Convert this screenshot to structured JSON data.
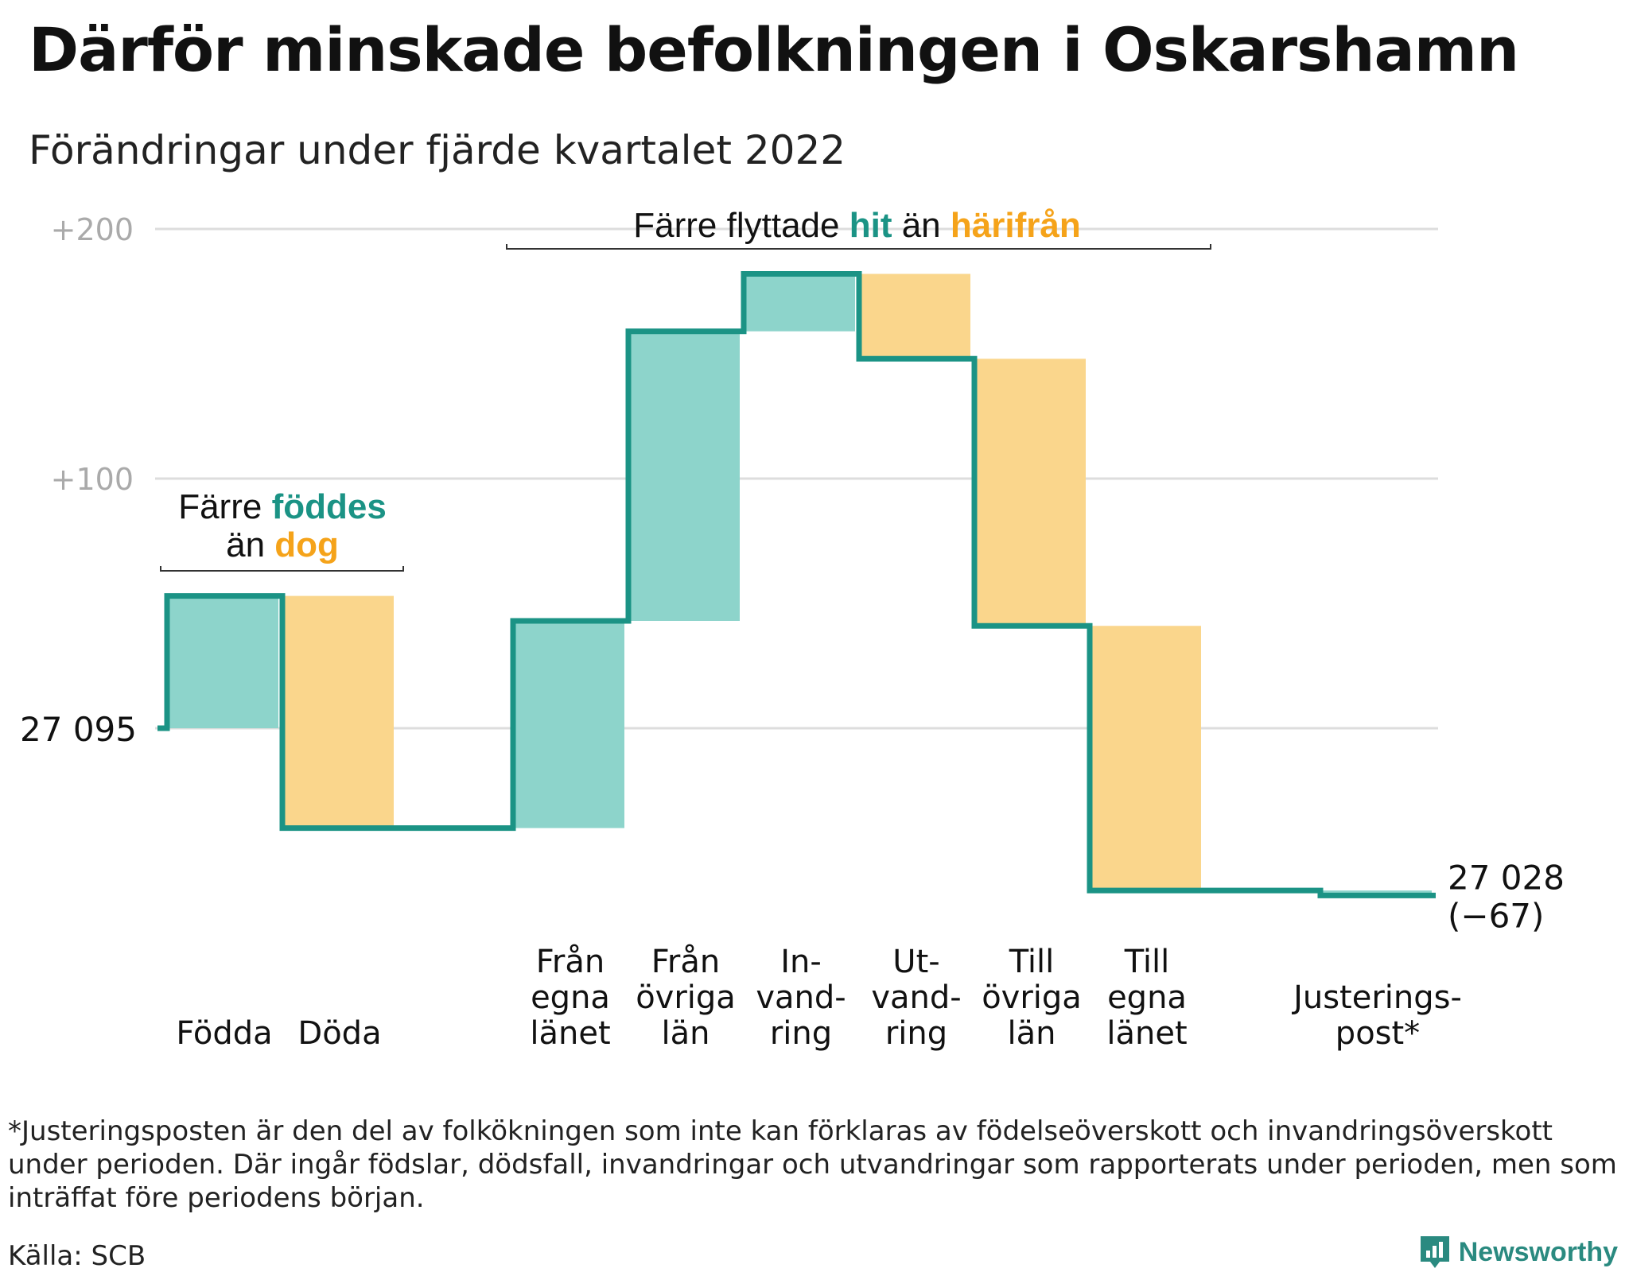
{
  "title": "Därför minskade befolkningen i Oskarshamn",
  "subtitle": "Förändringar under fjärde kvartalet 2022",
  "colors": {
    "inflow": "#8dd4cb",
    "outflow": "#fad68c",
    "line": "#1b9385",
    "inflow_text": "#1b9385",
    "outflow_text": "#f5a31a",
    "grid": "#dddddd",
    "tick": "#aaaaaa"
  },
  "annotations": {
    "births": {
      "pre": "Färre ",
      "hi1": "föddes",
      "line2_pre": "än ",
      "hi2": "dog"
    },
    "migration": {
      "pre": "Färre flyttade ",
      "hi1": "hit",
      "mid": " än ",
      "hi2": "härifrån"
    }
  },
  "chart_data": {
    "type": "waterfall",
    "start_value": 27095,
    "start_label": "27 095",
    "end_label": "27 028",
    "end_change": "(−67)",
    "ylim": [
      -80,
      200
    ],
    "yticks": [
      {
        "value": 200,
        "label": "+200"
      },
      {
        "value": 100,
        "label": "+100"
      },
      {
        "value": 0,
        "label": ""
      }
    ],
    "grid": true,
    "steps": [
      {
        "label": [
          "Födda"
        ],
        "change": 53,
        "kind": "inflow"
      },
      {
        "label": [
          "Döda"
        ],
        "change": -93,
        "kind": "outflow"
      },
      {
        "label": [
          ""
        ],
        "change": 0,
        "kind": "gap"
      },
      {
        "label": [
          "Från",
          "egna",
          "länet"
        ],
        "change": 83,
        "kind": "inflow"
      },
      {
        "label": [
          "Från",
          "övriga",
          "län"
        ],
        "change": 116,
        "kind": "inflow"
      },
      {
        "label": [
          "In-",
          "vand-",
          "ring"
        ],
        "change": 23,
        "kind": "inflow"
      },
      {
        "label": [
          "Ut-",
          "vand-",
          "ring"
        ],
        "change": -34,
        "kind": "outflow"
      },
      {
        "label": [
          "Till",
          "övriga",
          "län"
        ],
        "change": -107,
        "kind": "outflow"
      },
      {
        "label": [
          "Till",
          "egna",
          "länet"
        ],
        "change": -106,
        "kind": "outflow"
      },
      {
        "label": [
          ""
        ],
        "change": 0,
        "kind": "gap"
      },
      {
        "label": [
          "Justerings-",
          "post*"
        ],
        "change": -2,
        "kind": "adjust"
      }
    ]
  },
  "footnote": "*Justeringsposten är den del av folkökningen som inte kan förklaras av födelseöverskott och invandringsöverskott under perioden. Där ingår födslar, dödsfall, invandringar och utvandringar som rapporterats under perioden, men som inträffat före periodens början.",
  "source": "Källa: SCB",
  "brand": "Newsworthy"
}
